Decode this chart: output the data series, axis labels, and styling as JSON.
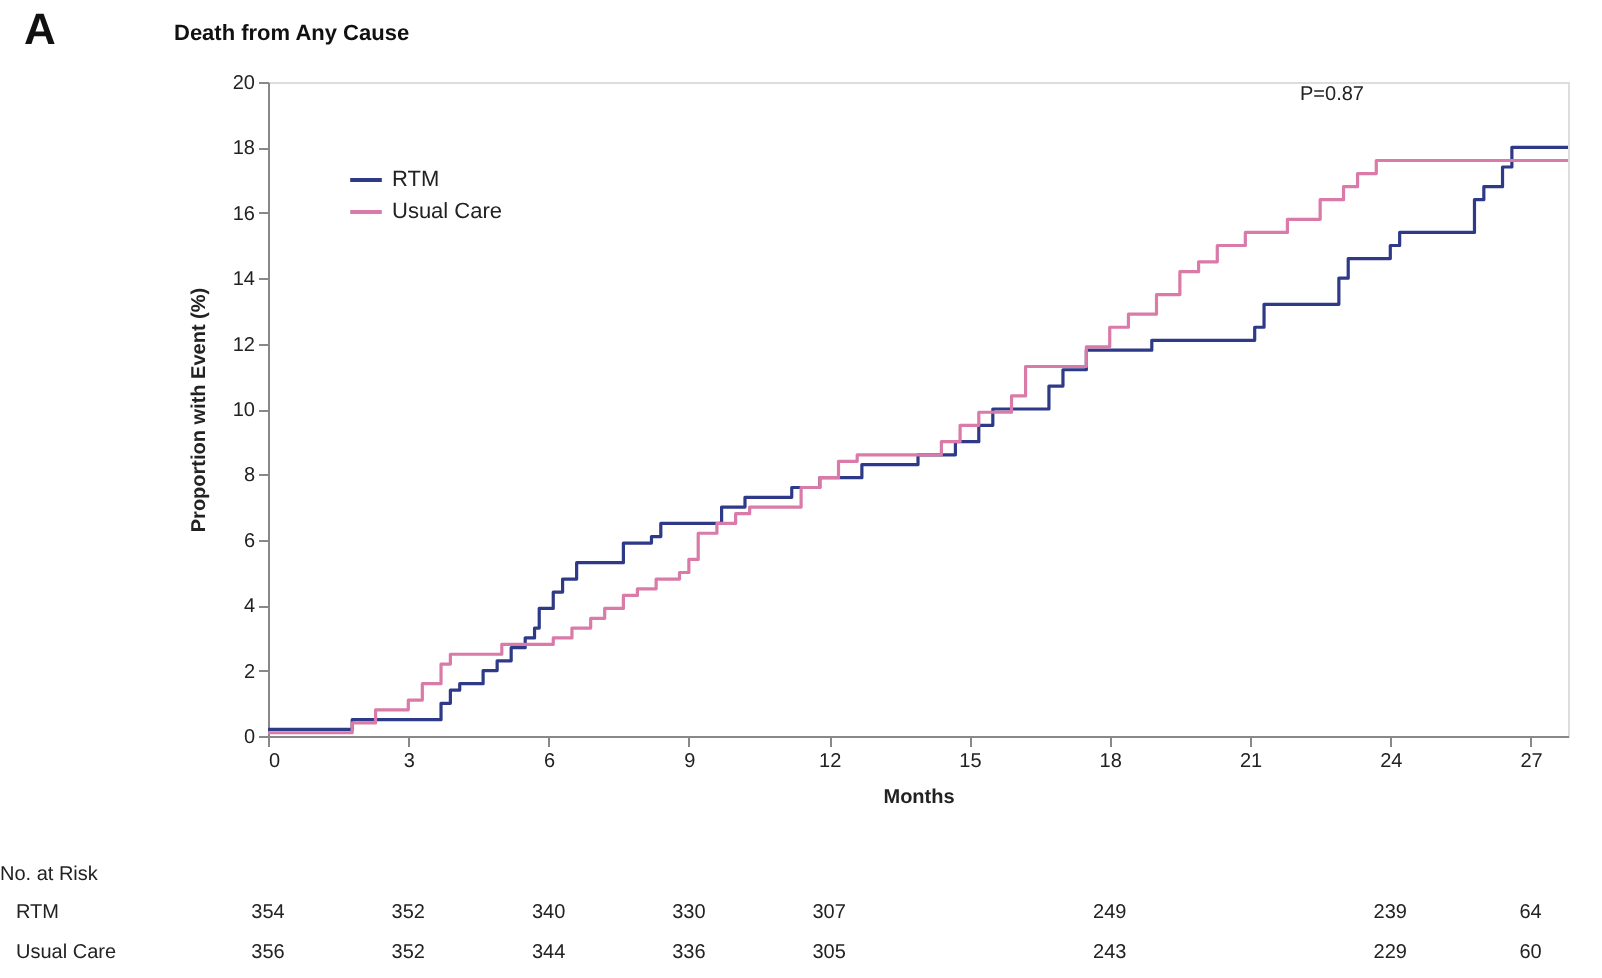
{
  "chart_data": {
    "type": "step",
    "title": "Death from Any Cause",
    "xlabel": "Months",
    "ylabel": "Proportion with Event (%)",
    "xlim": [
      0,
      27.8
    ],
    "xticks": [
      0,
      3,
      6,
      9,
      12,
      15,
      18,
      21,
      24,
      27
    ],
    "ylim": [
      0,
      20
    ],
    "yticks": [
      0,
      2,
      4,
      6,
      8,
      10,
      12,
      14,
      16,
      18,
      20
    ],
    "grid": false,
    "legend": "top left",
    "series": [
      {
        "name": "RTM",
        "color": "#2e3a87",
        "x": [
          0,
          1.8,
          3.7,
          3.9,
          4.1,
          4.6,
          4.9,
          5.2,
          5.5,
          5.7,
          5.8,
          6.1,
          6.3,
          6.6,
          7.6,
          8.2,
          8.4,
          9.7,
          10.2,
          11.2,
          11.8,
          12.7,
          13.9,
          14.7,
          15.2,
          15.5,
          16.7,
          17.0,
          17.5,
          18.9,
          21.1,
          21.3,
          22.9,
          23.1,
          24.0,
          24.2,
          25.8,
          26.0,
          26.4,
          26.6,
          27.8
        ],
        "values": [
          0.2,
          0.5,
          1.0,
          1.4,
          1.6,
          2.0,
          2.3,
          2.7,
          3.0,
          3.3,
          3.9,
          4.4,
          4.8,
          5.3,
          5.9,
          6.1,
          6.5,
          7.0,
          7.3,
          7.6,
          7.9,
          8.3,
          8.6,
          9.0,
          9.5,
          10.0,
          10.7,
          11.2,
          11.8,
          12.1,
          12.5,
          13.2,
          14.0,
          14.6,
          15.0,
          15.4,
          16.4,
          16.8,
          17.4,
          18.0,
          18.0
        ]
      },
      {
        "name": "Usual Care",
        "color": "#d97aa8",
        "x": [
          0,
          1.8,
          2.3,
          3.0,
          3.3,
          3.7,
          3.9,
          5.0,
          6.1,
          6.5,
          6.9,
          7.2,
          7.6,
          7.9,
          8.3,
          8.8,
          9.0,
          9.2,
          9.6,
          10.0,
          10.3,
          11.4,
          11.8,
          12.2,
          12.6,
          14.4,
          14.8,
          15.2,
          15.9,
          16.2,
          17.5,
          18.0,
          18.4,
          19.0,
          19.5,
          19.9,
          20.3,
          20.9,
          21.8,
          22.5,
          23.0,
          23.3,
          23.7,
          27.8
        ],
        "values": [
          0.1,
          0.4,
          0.8,
          1.1,
          1.6,
          2.2,
          2.5,
          2.8,
          3.0,
          3.3,
          3.6,
          3.9,
          4.3,
          4.5,
          4.8,
          5.0,
          5.4,
          6.2,
          6.5,
          6.8,
          7.0,
          7.6,
          7.9,
          8.4,
          8.6,
          9.0,
          9.5,
          9.9,
          10.4,
          11.3,
          11.9,
          12.5,
          12.9,
          13.5,
          14.2,
          14.5,
          15.0,
          15.4,
          15.8,
          16.4,
          16.8,
          17.2,
          17.6,
          17.6
        ]
      }
    ],
    "annotations": [
      "A",
      "P=0.87",
      "No. at Risk",
      "RTM",
      "354",
      "352",
      "340",
      "330",
      "307",
      "249",
      "239",
      "64",
      "Usual Care",
      "356",
      "352",
      "344",
      "336",
      "305",
      "243",
      "229",
      "60"
    ]
  }
}
